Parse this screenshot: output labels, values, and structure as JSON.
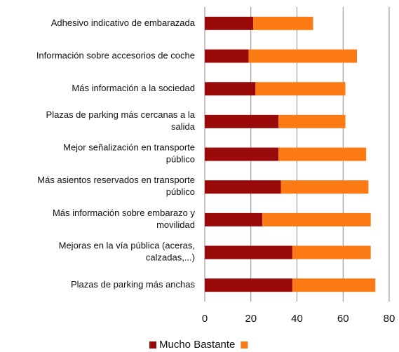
{
  "chart_data": {
    "type": "stacked-bar-horizontal",
    "categories": [
      "Adhesivo indicativo de embarazada",
      "Información sobre accesorios de coche",
      "Más información a la sociedad",
      "Plazas de parking más cercanas a la\nsalida",
      "Mejor señalización en transporte\npúblico",
      "Más asientos reservados en transporte\npúblico",
      "Más información sobre embarazo y\nmovilidad",
      "Mejoras en la vía pública (aceras,\ncalzadas,...)",
      "Plazas de parking más anchas"
    ],
    "series": [
      {
        "name": "Mucho Bastante",
        "color": "#9b0a0a",
        "values": [
          21,
          19,
          22,
          32,
          32,
          33,
          25,
          38,
          38
        ]
      },
      {
        "name": null,
        "color": "#fb7a14",
        "values": [
          26,
          47,
          39,
          29,
          38,
          38,
          47,
          34,
          36
        ]
      }
    ],
    "xlim": [
      0,
      80
    ],
    "xticks": [
      0,
      20,
      40,
      60,
      80
    ],
    "grid": true,
    "legend": "bottom"
  }
}
